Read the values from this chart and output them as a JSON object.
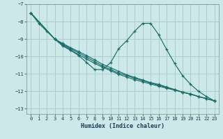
{
  "xlabel": "Humidex (Indice chaleur)",
  "background_color": "#cce8e8",
  "grid_color": "#aacccc",
  "line_color": "#1a6e6a",
  "xlim": [
    -0.5,
    23.5
  ],
  "ylim": [
    -13.3,
    -7.0
  ],
  "yticks": [
    -13,
    -12,
    -11,
    -10,
    -9,
    -8,
    -7
  ],
  "xticks": [
    0,
    1,
    2,
    3,
    4,
    5,
    6,
    7,
    8,
    9,
    10,
    11,
    12,
    13,
    14,
    15,
    16,
    17,
    18,
    19,
    20,
    21,
    22,
    23
  ],
  "lines": [
    {
      "x": [
        0,
        1,
        2,
        3,
        4,
        5,
        6,
        7,
        8,
        9,
        10,
        11,
        12,
        13,
        14,
        15,
        16,
        17,
        18,
        19,
        20,
        21,
        22,
        23
      ],
      "y": [
        -7.5,
        -8.1,
        -8.55,
        -9.0,
        -9.4,
        -9.65,
        -9.95,
        -10.35,
        -10.75,
        -10.75,
        -10.35,
        -9.55,
        -9.1,
        -8.55,
        -8.1,
        -8.1,
        -8.75,
        -9.6,
        -10.4,
        -11.1,
        -11.6,
        -12.0,
        -12.3,
        -12.55
      ]
    },
    {
      "x": [
        0,
        3,
        4,
        5,
        6,
        7,
        8,
        9,
        10,
        11,
        12,
        13,
        14,
        15,
        16,
        17,
        18,
        19,
        20,
        21,
        22,
        23
      ],
      "y": [
        -7.5,
        -9.0,
        -9.25,
        -9.5,
        -9.72,
        -9.95,
        -10.2,
        -10.45,
        -10.65,
        -10.85,
        -11.05,
        -11.2,
        -11.35,
        -11.5,
        -11.6,
        -11.75,
        -11.9,
        -12.05,
        -12.15,
        -12.3,
        -12.42,
        -12.55
      ]
    },
    {
      "x": [
        0,
        3,
        4,
        5,
        6,
        7,
        8,
        9,
        10,
        11,
        12,
        13,
        14,
        15,
        16,
        17,
        18,
        19,
        20,
        21,
        22,
        23
      ],
      "y": [
        -7.5,
        -9.0,
        -9.3,
        -9.55,
        -9.8,
        -10.05,
        -10.3,
        -10.55,
        -10.75,
        -10.95,
        -11.1,
        -11.25,
        -11.38,
        -11.52,
        -11.65,
        -11.78,
        -11.9,
        -12.05,
        -12.15,
        -12.3,
        -12.42,
        -12.55
      ]
    },
    {
      "x": [
        0,
        3,
        4,
        5,
        6,
        7,
        8,
        9,
        10,
        11,
        12,
        13,
        14,
        15,
        16,
        17,
        18,
        19,
        20,
        21,
        22,
        23
      ],
      "y": [
        -7.5,
        -9.0,
        -9.35,
        -9.62,
        -9.9,
        -10.15,
        -10.4,
        -10.62,
        -10.82,
        -11.02,
        -11.18,
        -11.33,
        -11.45,
        -11.58,
        -11.7,
        -11.82,
        -11.93,
        -12.05,
        -12.17,
        -12.3,
        -12.42,
        -12.55
      ]
    }
  ]
}
